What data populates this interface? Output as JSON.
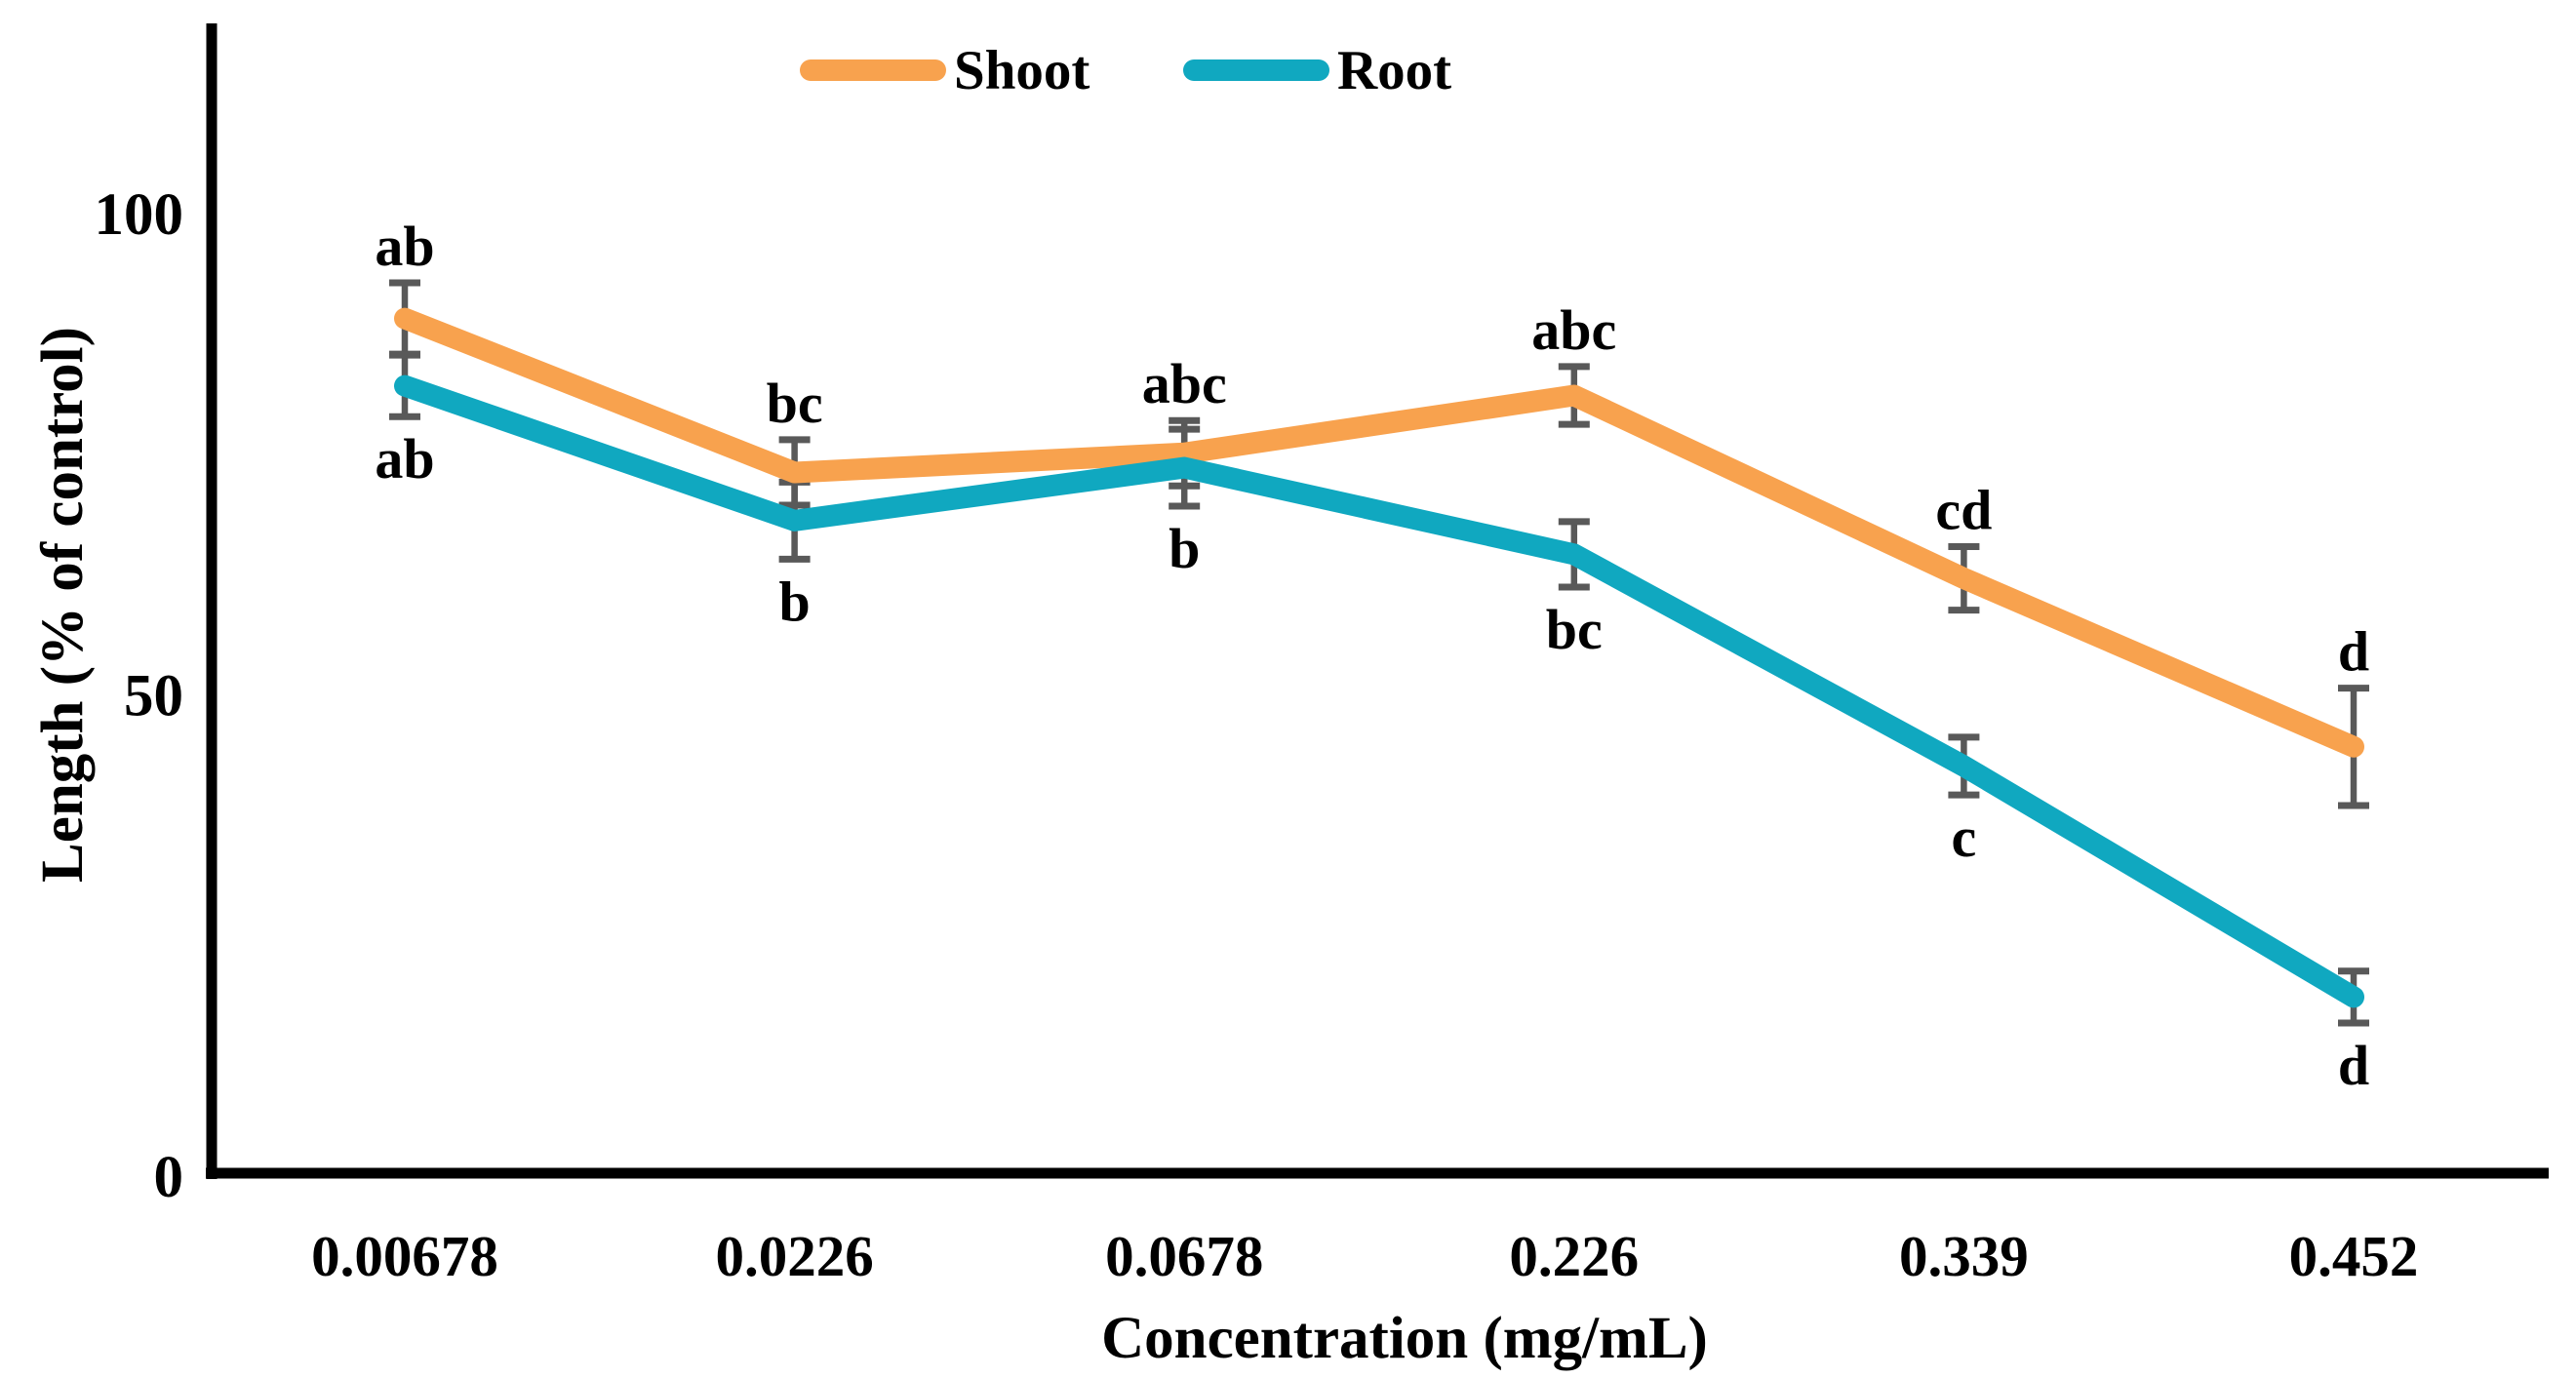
{
  "chart_data": {
    "type": "line",
    "title": "",
    "xlabel": "Concentration (mg/mL)",
    "ylabel": "Length (% of control)",
    "categories": [
      "0.00678",
      "0.0226",
      "0.0678",
      "0.226",
      "0.339",
      "0.452"
    ],
    "y_ticks": [
      0,
      50,
      100
    ],
    "ylim": [
      0,
      120
    ],
    "grid": false,
    "legend_position": "top-center",
    "axis_color": "#000000",
    "error_bar_color": "#595959",
    "series": [
      {
        "name": "Shoot",
        "color": "#F8A24E",
        "values": [
          89,
          73,
          75,
          81,
          62,
          44.5
        ],
        "errors": [
          3.7,
          3.4,
          3.4,
          3.0,
          3.3,
          6.1
        ],
        "sig_letters": [
          "ab",
          "bc",
          "abc",
          "abc",
          "cd",
          "d"
        ],
        "letters_position": "above"
      },
      {
        "name": "Root",
        "color": "#10A8C0",
        "values": [
          82,
          68,
          73.5,
          64.5,
          42.5,
          18.5
        ],
        "errors": [
          3.2,
          4.0,
          4.0,
          3.4,
          3.0,
          2.7
        ],
        "sig_letters": [
          "ab",
          "b",
          "b",
          "bc",
          "c",
          "d"
        ],
        "letters_position": "below"
      }
    ]
  }
}
